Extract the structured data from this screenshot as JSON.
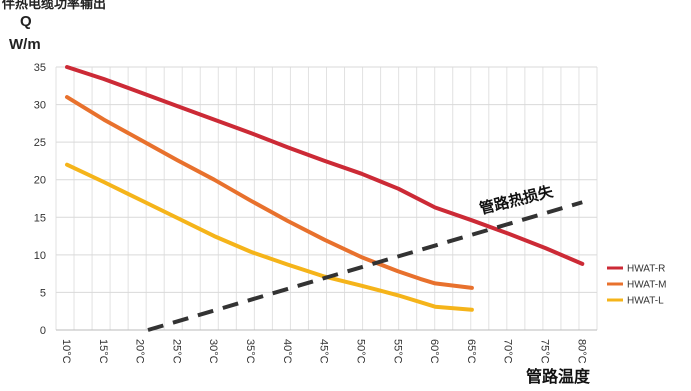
{
  "chart_data": {
    "type": "line",
    "header_partial": "伴热电缆功率输出",
    "y_title_line1": "Q",
    "y_title_line2": "W/m",
    "x_title": "管路温度",
    "annotation": "管路热损失",
    "ylim": [
      0,
      35
    ],
    "y_ticks": [
      0,
      5,
      10,
      15,
      20,
      25,
      30,
      35
    ],
    "x_ticks": [
      "10°C",
      "15°C",
      "20°C",
      "25°C",
      "30°C",
      "35°C",
      "40°C",
      "45°C",
      "50°C",
      "55°C",
      "60°C",
      "65°C",
      "70°C",
      "75°C",
      "80°C"
    ],
    "x_values": [
      10,
      15,
      20,
      25,
      30,
      35,
      40,
      45,
      50,
      55,
      60,
      65,
      70,
      75,
      80
    ],
    "grid": true,
    "legend_position": "right",
    "series": [
      {
        "name": "HWAT-R",
        "color": "#cc2a36",
        "points": [
          [
            10,
            35
          ],
          [
            15,
            33.4
          ],
          [
            20,
            31.6
          ],
          [
            25,
            29.8
          ],
          [
            30,
            28
          ],
          [
            35,
            26.2
          ],
          [
            40,
            24.3
          ],
          [
            45,
            22.5
          ],
          [
            50,
            20.8
          ],
          [
            55,
            18.8
          ],
          [
            60,
            16.3
          ],
          [
            65,
            14.6
          ],
          [
            70,
            12.8
          ],
          [
            75,
            10.9
          ],
          [
            80,
            8.8
          ]
        ]
      },
      {
        "name": "HWAT-M",
        "color": "#e8712d",
        "points": [
          [
            10,
            31
          ],
          [
            15,
            28
          ],
          [
            20,
            25.3
          ],
          [
            25,
            22.6
          ],
          [
            30,
            20
          ],
          [
            35,
            17.2
          ],
          [
            40,
            14.5
          ],
          [
            45,
            12
          ],
          [
            50,
            9.7
          ],
          [
            55,
            7.8
          ],
          [
            58,
            6.8
          ],
          [
            60,
            6.2
          ],
          [
            65,
            5.6
          ]
        ]
      },
      {
        "name": "HWAT-L",
        "color": "#f5b41a",
        "points": [
          [
            10,
            22
          ],
          [
            15,
            19.7
          ],
          [
            20,
            17.3
          ],
          [
            25,
            14.9
          ],
          [
            30,
            12.5
          ],
          [
            35,
            10.4
          ],
          [
            40,
            8.7
          ],
          [
            45,
            7.1
          ],
          [
            50,
            5.9
          ],
          [
            55,
            4.6
          ],
          [
            60,
            3.1
          ],
          [
            65,
            2.7
          ]
        ]
      }
    ],
    "heat_loss_line": {
      "color": "#333333",
      "points": [
        [
          21,
          0
        ],
        [
          80,
          17
        ]
      ]
    }
  }
}
